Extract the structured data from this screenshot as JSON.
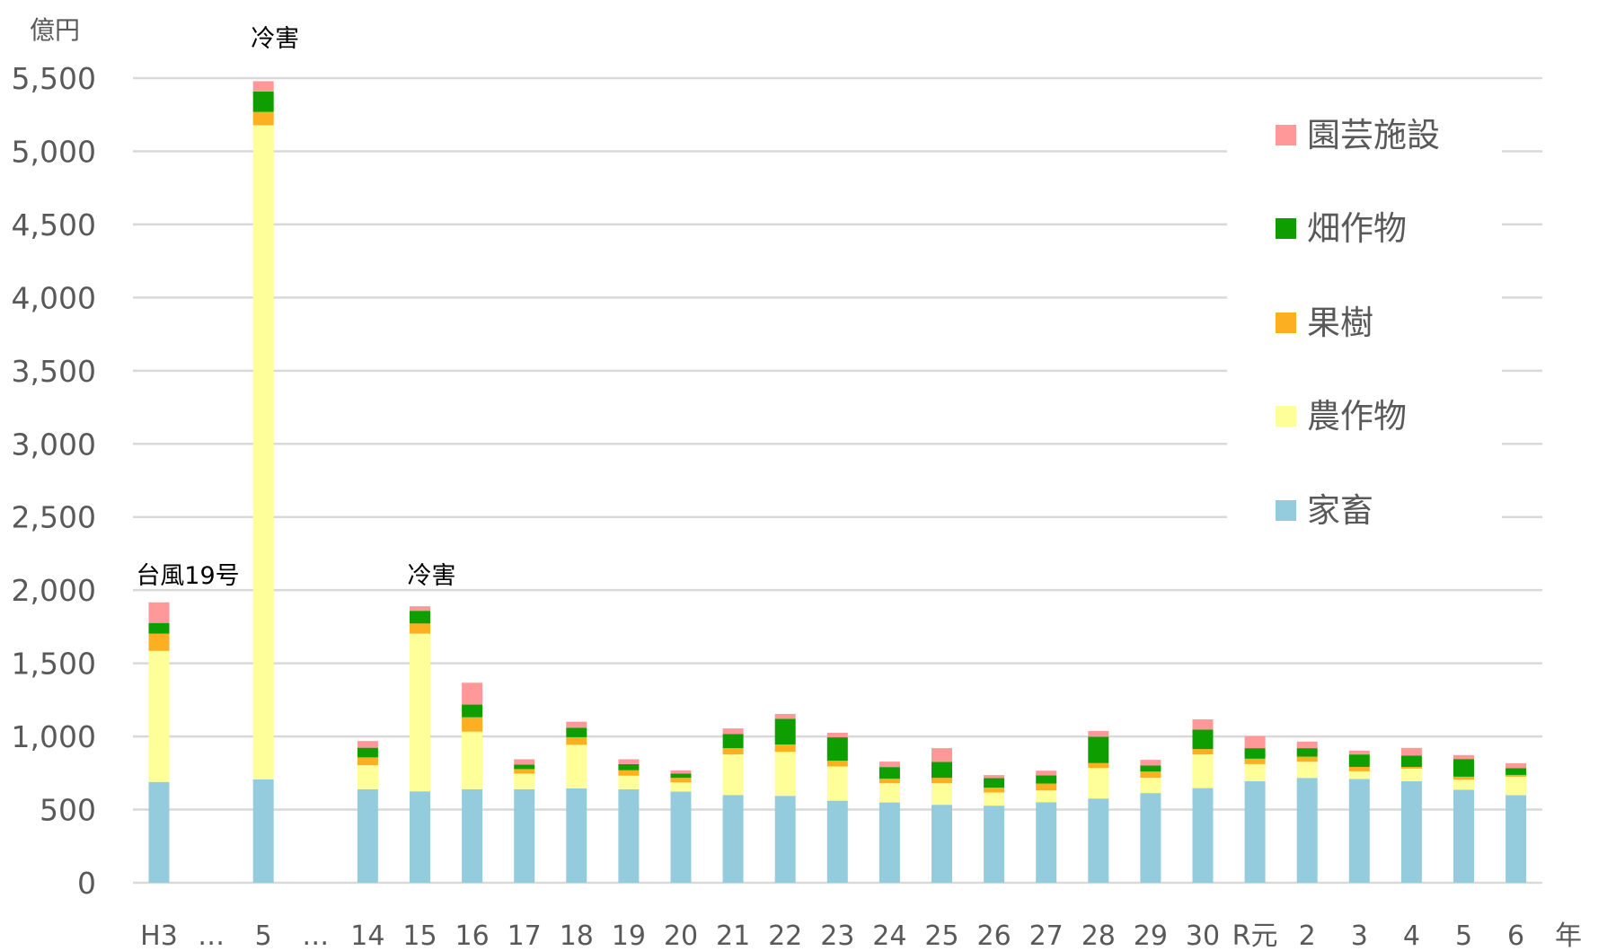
{
  "chart_data": {
    "type": "bar",
    "stacked": true,
    "ylabel": "億円",
    "xlabel": "年",
    "ylim": [
      0,
      5500
    ],
    "yticks": [
      0,
      500,
      1000,
      1500,
      2000,
      2500,
      3000,
      3500,
      4000,
      4500,
      5000,
      5500
    ],
    "ytick_labels": [
      "0",
      "500",
      "1,000",
      "1,500",
      "2,000",
      "2,500",
      "3,000",
      "3,500",
      "4,000",
      "4,500",
      "5,000",
      "5,500"
    ],
    "grid": true,
    "legend_position": "top-right",
    "categories": [
      "H3",
      "…",
      "5",
      "…",
      "14",
      "15",
      "16",
      "17",
      "18",
      "19",
      "20",
      "21",
      "22",
      "23",
      "24",
      "25",
      "26",
      "27",
      "28",
      "29",
      "30",
      "R元",
      "2",
      "3",
      "4",
      "5",
      "6"
    ],
    "series": [
      {
        "name": "家畜",
        "color": "#95CCDD",
        "values": [
          689,
          null,
          707,
          null,
          639,
          625,
          639,
          639,
          645,
          639,
          623,
          600,
          594,
          561,
          549,
          533,
          527,
          551,
          576,
          613,
          647,
          694,
          717,
          710,
          694,
          636,
          599
        ]
      },
      {
        "name": "農作物",
        "color": "#FFFF99",
        "values": [
          896,
          null,
          4471,
          null,
          164,
          1078,
          394,
          107,
          298,
          93,
          63,
          277,
          301,
          234,
          131,
          147,
          90,
          80,
          209,
          104,
          230,
          117,
          110,
          52,
          86,
          68,
          126
        ]
      },
      {
        "name": "果樹",
        "color": "#FBAF21",
        "values": [
          118,
          null,
          91,
          null,
          54,
          69,
          98,
          31,
          52,
          37,
          31,
          43,
          50,
          39,
          31,
          37,
          33,
          47,
          33,
          43,
          37,
          37,
          35,
          30,
          12,
          21,
          12
        ]
      },
      {
        "name": "畑作物",
        "color": "#0E9E00",
        "values": [
          73,
          null,
          140,
          null,
          66,
          87,
          87,
          31,
          65,
          42,
          29,
          96,
          176,
          160,
          80,
          109,
          65,
          56,
          180,
          41,
          133,
          72,
          58,
          85,
          78,
          121,
          47
        ]
      },
      {
        "name": "園芸施設",
        "color": "#FF9999",
        "values": [
          141,
          null,
          70,
          null,
          46,
          31,
          149,
          36,
          41,
          33,
          22,
          39,
          33,
          31,
          37,
          94,
          21,
          32,
          39,
          39,
          70,
          82,
          45,
          26,
          52,
          27,
          33
        ]
      }
    ],
    "legend_order": [
      "園芸施設",
      "畑作物",
      "果樹",
      "農作物",
      "家畜"
    ],
    "annotations": [
      {
        "category": "H3",
        "text": "台風19号"
      },
      {
        "category": "5",
        "text": "冷害"
      },
      {
        "category": "15",
        "text": "冷害"
      }
    ]
  }
}
